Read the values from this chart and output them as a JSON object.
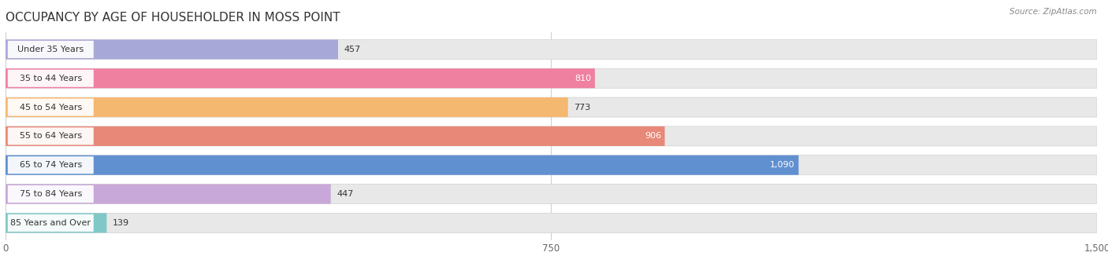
{
  "title": "OCCUPANCY BY AGE OF HOUSEHOLDER IN MOSS POINT",
  "source": "Source: ZipAtlas.com",
  "categories": [
    "Under 35 Years",
    "35 to 44 Years",
    "45 to 54 Years",
    "55 to 64 Years",
    "65 to 74 Years",
    "75 to 84 Years",
    "85 Years and Over"
  ],
  "values": [
    457,
    810,
    773,
    906,
    1090,
    447,
    139
  ],
  "bar_colors": [
    "#a8a8d8",
    "#f080a0",
    "#f5b870",
    "#e88878",
    "#6090d0",
    "#c8a8d8",
    "#80c8c8"
  ],
  "label_colors": [
    "#000000",
    "#000000",
    "#000000",
    "#ffffff",
    "#ffffff",
    "#000000",
    "#000000"
  ],
  "xlim": [
    0,
    1500
  ],
  "xticks": [
    0,
    750,
    1500
  ],
  "bar_bg_color": "#e8e8e8",
  "title_fontsize": 11,
  "bar_height": 0.68,
  "figsize": [
    14.06,
    3.4
  ]
}
